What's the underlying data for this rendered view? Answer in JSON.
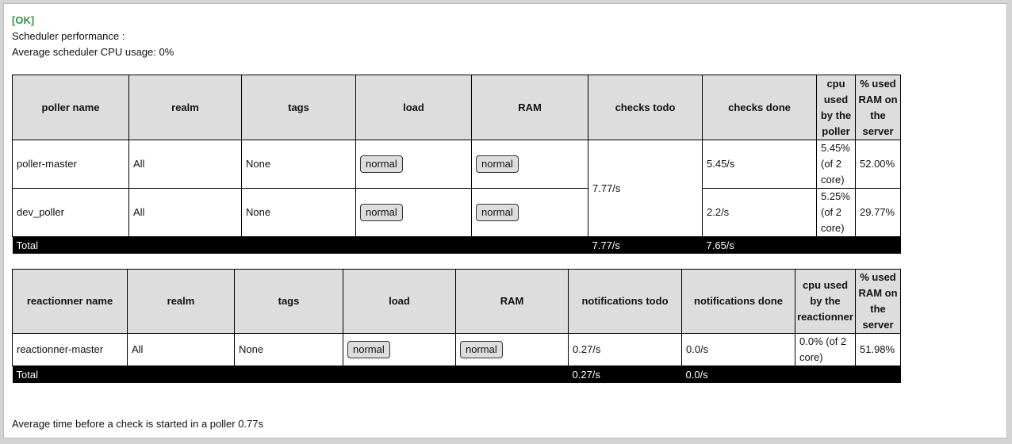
{
  "status": "[OK]",
  "title": "Scheduler performance :",
  "avg_cpu": "Average scheduler CPU usage: 0%",
  "pollers": {
    "headers": [
      "poller name",
      "realm",
      "tags",
      "load",
      "RAM",
      "checks todo",
      "checks done",
      "cpu used by the poller",
      "% used RAM on the server"
    ],
    "rows": [
      {
        "name": "poller-master",
        "realm": "All",
        "tags": "None",
        "load": "normal",
        "ram": "normal",
        "done": "5.45/s",
        "cpu": "5.45% (of 2 core)",
        "ram_pct": "52.00%"
      },
      {
        "name": "dev_poller",
        "realm": "All",
        "tags": "None",
        "load": "normal",
        "ram": "normal",
        "done": "2.2/s",
        "cpu": "5.25% (of 2 core)",
        "ram_pct": "29.77%"
      }
    ],
    "todo": "7.77/s",
    "total": {
      "label": "Total",
      "todo": "7.77/s",
      "done": "7.65/s"
    }
  },
  "reactionners": {
    "headers": [
      "reactionner name",
      "realm",
      "tags",
      "load",
      "RAM",
      "notifications todo",
      "notifications done",
      "cpu used by the reactionner",
      "% used RAM on the server"
    ],
    "rows": [
      {
        "name": "reactionner-master",
        "realm": "All",
        "tags": "None",
        "load": "normal",
        "ram": "normal",
        "todo": "0.27/s",
        "done": "0.0/s",
        "cpu": "0.0% (of 2 core)",
        "ram_pct": "51.98%"
      }
    ],
    "total": {
      "label": "Total",
      "todo": "0.27/s",
      "done": "0.0/s"
    }
  },
  "avg_time": "Average time before a check is started in a poller 0.77s"
}
